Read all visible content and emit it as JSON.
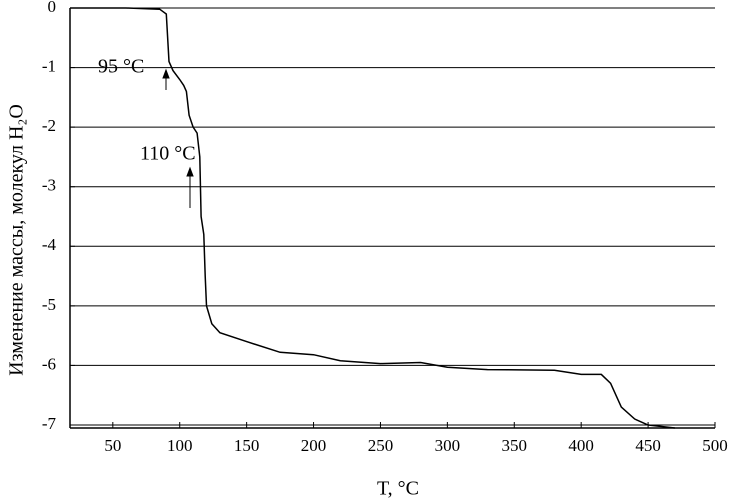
{
  "chart_data": {
    "type": "line",
    "xlabel": "T, °C",
    "ylabel": "Изменение массы, молекул H₂O",
    "annotations": [
      "95 °C",
      "110 °C"
    ],
    "x": [
      18,
      30,
      60,
      85,
      90,
      92,
      95,
      100,
      103,
      105,
      107,
      110,
      113,
      115,
      116,
      118,
      119,
      120,
      124,
      130,
      150,
      175,
      200,
      220,
      250,
      280,
      300,
      330,
      380,
      400,
      415,
      422,
      430,
      440,
      450,
      470
    ],
    "values": [
      0,
      0,
      0,
      -0.02,
      -0.1,
      -0.9,
      -1.05,
      -1.2,
      -1.3,
      -1.4,
      -1.8,
      -2,
      -2.1,
      -2.5,
      -3.5,
      -3.8,
      -4.5,
      -5,
      -5.3,
      -5.45,
      -5.6,
      -5.78,
      -5.82,
      -5.92,
      -5.97,
      -5.95,
      -6.03,
      -6.07,
      -6.08,
      -6.15,
      -6.15,
      -6.3,
      -6.7,
      -6.9,
      -7,
      -7.05
    ],
    "color": "#000000",
    "xlim": [
      18,
      500
    ],
    "ylim": [
      -7,
      0
    ],
    "xticks": [
      50,
      100,
      150,
      200,
      250,
      300,
      350,
      400,
      450,
      500
    ],
    "yticks": [
      0,
      -1,
      -2,
      -3,
      -4,
      -5,
      -6,
      -7
    ],
    "grid": true
  }
}
